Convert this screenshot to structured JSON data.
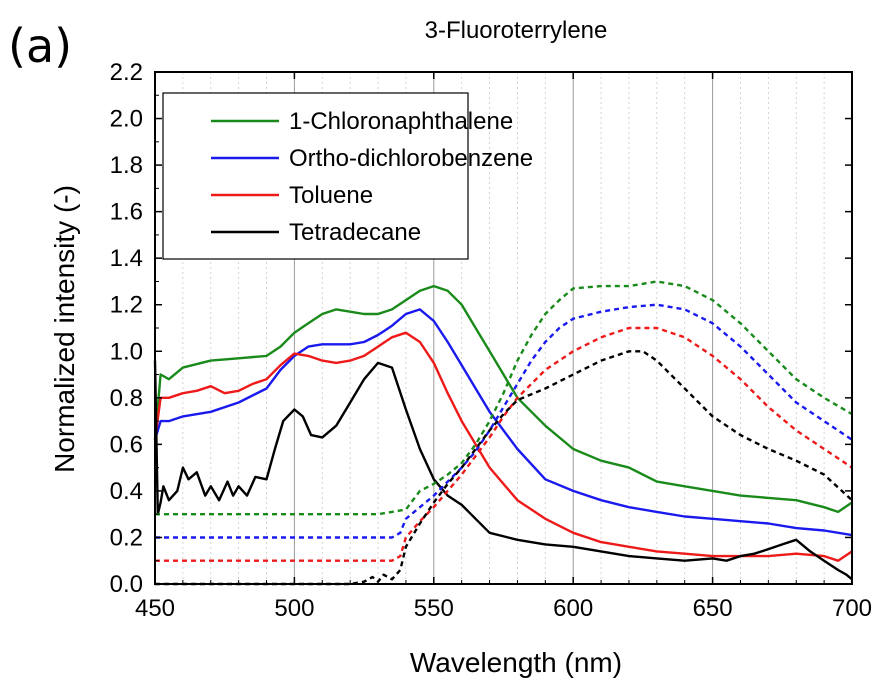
{
  "panel_label": "(a)",
  "chart_data": {
    "type": "line",
    "title": "3-Fluoroterrylene",
    "xlabel": "Wavelength (nm)",
    "ylabel": "Normalized intensity (-)",
    "xlim": [
      450,
      700
    ],
    "ylim": [
      0.0,
      2.2
    ],
    "xticks": [
      "450",
      "500",
      "550",
      "600",
      "650",
      "700"
    ],
    "yticks": [
      "0.0",
      "0.2",
      "0.4",
      "0.6",
      "0.8",
      "1.0",
      "1.2",
      "1.4",
      "1.6",
      "1.8",
      "2.0",
      "2.2"
    ],
    "grid": "vertical",
    "legend_position": "top-left",
    "series": [
      {
        "name": "1-Chloronaphthalene",
        "color": "#1a8a1a",
        "style": "solid",
        "x": [
          450,
          452,
          455,
          460,
          470,
          480,
          490,
          495,
          500,
          505,
          510,
          515,
          520,
          525,
          530,
          535,
          540,
          545,
          550,
          555,
          560,
          565,
          570,
          575,
          580,
          590,
          600,
          610,
          620,
          630,
          640,
          650,
          660,
          670,
          680,
          690,
          695,
          700
        ],
        "y": [
          0.62,
          0.9,
          0.88,
          0.93,
          0.96,
          0.97,
          0.98,
          1.02,
          1.08,
          1.12,
          1.16,
          1.18,
          1.17,
          1.16,
          1.16,
          1.18,
          1.22,
          1.26,
          1.28,
          1.26,
          1.2,
          1.1,
          1.0,
          0.9,
          0.8,
          0.68,
          0.58,
          0.53,
          0.5,
          0.44,
          0.42,
          0.4,
          0.38,
          0.37,
          0.36,
          0.33,
          0.31,
          0.35
        ]
      },
      {
        "name": "Ortho-dichlorobenzene",
        "color": "#1a1aee",
        "style": "solid",
        "x": [
          450,
          452,
          455,
          460,
          470,
          480,
          490,
          495,
          500,
          505,
          510,
          520,
          525,
          530,
          535,
          540,
          545,
          550,
          555,
          560,
          565,
          570,
          580,
          590,
          600,
          610,
          620,
          630,
          640,
          650,
          660,
          670,
          680,
          690,
          700
        ],
        "y": [
          0.62,
          0.7,
          0.7,
          0.72,
          0.74,
          0.78,
          0.84,
          0.92,
          0.98,
          1.02,
          1.03,
          1.03,
          1.04,
          1.07,
          1.11,
          1.16,
          1.18,
          1.13,
          1.04,
          0.94,
          0.84,
          0.74,
          0.58,
          0.45,
          0.4,
          0.36,
          0.33,
          0.31,
          0.29,
          0.28,
          0.27,
          0.26,
          0.24,
          0.23,
          0.21
        ]
      },
      {
        "name": "Toluene",
        "color": "#ee1a1a",
        "style": "solid",
        "x": [
          450,
          452,
          455,
          460,
          465,
          470,
          475,
          480,
          485,
          490,
          495,
          500,
          505,
          510,
          515,
          520,
          525,
          530,
          535,
          540,
          545,
          550,
          555,
          560,
          570,
          580,
          590,
          600,
          610,
          620,
          630,
          640,
          650,
          660,
          670,
          680,
          690,
          695,
          700
        ],
        "y": [
          0.62,
          0.8,
          0.8,
          0.82,
          0.83,
          0.85,
          0.82,
          0.83,
          0.86,
          0.88,
          0.94,
          0.99,
          0.98,
          0.96,
          0.95,
          0.96,
          0.98,
          1.02,
          1.06,
          1.08,
          1.04,
          0.95,
          0.82,
          0.7,
          0.5,
          0.36,
          0.28,
          0.22,
          0.18,
          0.16,
          0.14,
          0.13,
          0.12,
          0.12,
          0.12,
          0.13,
          0.12,
          0.1,
          0.14
        ]
      },
      {
        "name": "Tetradecane",
        "color": "#000000",
        "style": "solid",
        "x": [
          450,
          451,
          452,
          453,
          455,
          458,
          460,
          462,
          465,
          468,
          470,
          473,
          476,
          478,
          480,
          483,
          486,
          490,
          493,
          496,
          500,
          503,
          506,
          510,
          515,
          520,
          525,
          530,
          535,
          540,
          545,
          550,
          555,
          560,
          565,
          570,
          580,
          590,
          600,
          610,
          620,
          630,
          640,
          650,
          655,
          660,
          665,
          670,
          675,
          680,
          685,
          690,
          695,
          698,
          700
        ],
        "y": [
          0.96,
          0.3,
          0.35,
          0.42,
          0.36,
          0.4,
          0.5,
          0.45,
          0.48,
          0.38,
          0.42,
          0.36,
          0.44,
          0.38,
          0.42,
          0.38,
          0.46,
          0.45,
          0.58,
          0.7,
          0.75,
          0.72,
          0.64,
          0.63,
          0.68,
          0.78,
          0.88,
          0.95,
          0.93,
          0.75,
          0.58,
          0.45,
          0.38,
          0.34,
          0.28,
          0.22,
          0.19,
          0.17,
          0.16,
          0.14,
          0.12,
          0.11,
          0.1,
          0.11,
          0.1,
          0.12,
          0.13,
          0.15,
          0.17,
          0.19,
          0.14,
          0.1,
          0.06,
          0.04,
          0.02
        ]
      },
      {
        "name": "",
        "color": "#1a8a1a",
        "style": "dashed",
        "x": [
          450,
          530,
          535,
          540,
          545,
          550,
          555,
          560,
          565,
          570,
          575,
          580,
          585,
          590,
          595,
          600,
          610,
          620,
          625,
          630,
          640,
          650,
          660,
          670,
          680,
          690,
          700
        ],
        "y": [
          0.3,
          0.3,
          0.31,
          0.32,
          0.4,
          0.43,
          0.47,
          0.52,
          0.6,
          0.7,
          0.82,
          0.96,
          1.07,
          1.16,
          1.22,
          1.27,
          1.28,
          1.28,
          1.29,
          1.3,
          1.28,
          1.22,
          1.12,
          1.0,
          0.88,
          0.8,
          0.73
        ]
      },
      {
        "name": "",
        "color": "#1a1aee",
        "style": "dashed",
        "x": [
          450,
          535,
          538,
          540,
          545,
          550,
          555,
          560,
          565,
          570,
          575,
          580,
          585,
          590,
          595,
          600,
          610,
          620,
          630,
          640,
          650,
          660,
          670,
          680,
          690,
          700
        ],
        "y": [
          0.2,
          0.2,
          0.22,
          0.28,
          0.33,
          0.38,
          0.44,
          0.5,
          0.57,
          0.66,
          0.76,
          0.86,
          0.96,
          1.04,
          1.1,
          1.14,
          1.17,
          1.19,
          1.2,
          1.18,
          1.12,
          1.02,
          0.9,
          0.78,
          0.7,
          0.62
        ]
      },
      {
        "name": "",
        "color": "#ee1a1a",
        "style": "dashed",
        "x": [
          450,
          535,
          538,
          540,
          545,
          550,
          555,
          560,
          565,
          570,
          575,
          580,
          585,
          590,
          595,
          600,
          610,
          620,
          630,
          640,
          650,
          660,
          670,
          680,
          690,
          700
        ],
        "y": [
          0.1,
          0.1,
          0.12,
          0.2,
          0.27,
          0.33,
          0.4,
          0.47,
          0.55,
          0.63,
          0.72,
          0.8,
          0.86,
          0.92,
          0.96,
          1.0,
          1.06,
          1.1,
          1.1,
          1.06,
          0.98,
          0.88,
          0.76,
          0.66,
          0.58,
          0.5
        ]
      },
      {
        "name": "",
        "color": "#000000",
        "style": "dashed",
        "x": [
          450,
          520,
          525,
          528,
          530,
          532,
          535,
          538,
          540,
          545,
          550,
          555,
          560,
          565,
          570,
          575,
          580,
          590,
          600,
          610,
          620,
          625,
          630,
          640,
          650,
          660,
          670,
          680,
          690,
          700
        ],
        "y": [
          0.0,
          0.0,
          0.01,
          0.03,
          0.01,
          0.04,
          0.02,
          0.06,
          0.16,
          0.26,
          0.35,
          0.43,
          0.5,
          0.58,
          0.66,
          0.73,
          0.79,
          0.84,
          0.9,
          0.96,
          1.0,
          1.0,
          0.96,
          0.84,
          0.72,
          0.64,
          0.58,
          0.53,
          0.47,
          0.36
        ]
      }
    ]
  }
}
